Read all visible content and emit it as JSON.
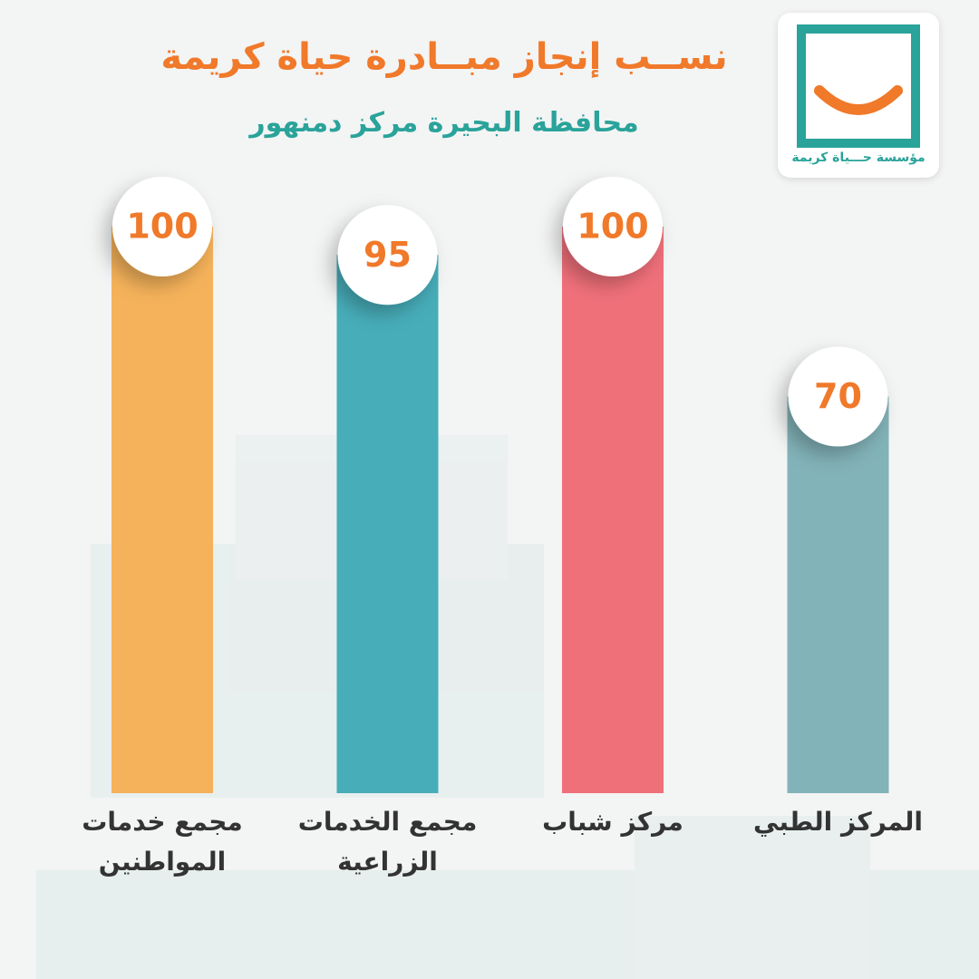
{
  "chart_data": {
    "type": "bar",
    "title": "نســب إنجاز مبــادرة حياة كريمة",
    "subtitle": "محافظة البحيرة مركز دمنهور",
    "categories": [
      "مجمع خدمات المواطنين",
      "مجمع الخدمات الزراعية",
      "مركز شباب",
      "المركز الطبي"
    ],
    "values": [
      100,
      95,
      100,
      70
    ],
    "colors": [
      "#f5b25a",
      "#47adb9",
      "#f0707a",
      "#82b3b8"
    ]
  },
  "logo": {
    "text": "مؤسسة حـــياة كريمة"
  }
}
